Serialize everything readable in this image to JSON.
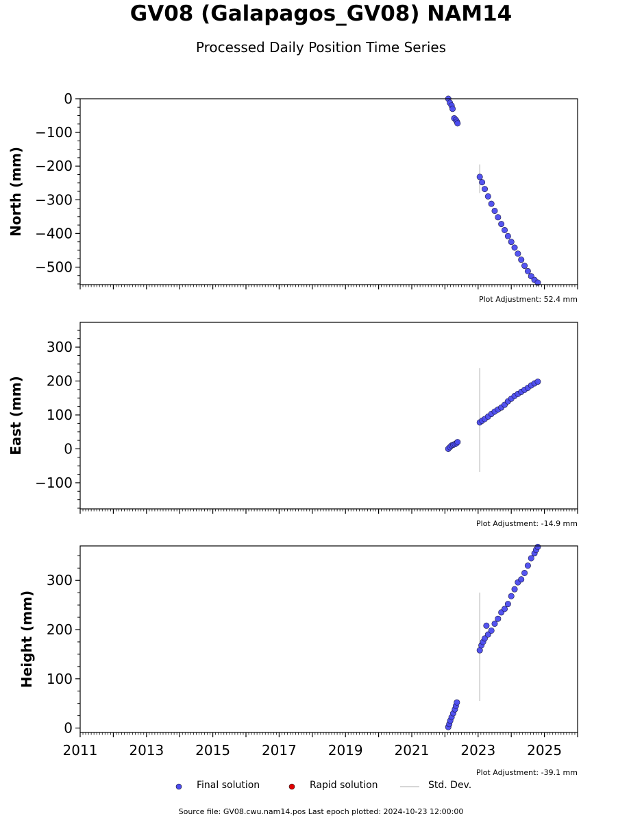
{
  "page": {
    "title": "GV08 (Galapagos_GV08) NAM14",
    "subtitle": "Processed Daily Position Time Series"
  },
  "legend": {
    "final_label": "Final solution",
    "rapid_label": "Rapid solution",
    "std_label": "Std. Dev.",
    "final_color": "#4b4bef",
    "rapid_color": "#e00000",
    "std_color": "#c8c8c8"
  },
  "footer": {
    "source_text": "Source file: GV08.cwu.nam14.pos  Last epoch plotted: 2024-10-23 12:00:00"
  },
  "chart_data": [
    {
      "type": "scatter",
      "component": "north",
      "ylabel": "North (mm)",
      "xlim": [
        2011.0,
        2026.0
      ],
      "ylim": [
        -552,
        0
      ],
      "yticks": [
        0,
        -100,
        -200,
        -300,
        -400,
        -500
      ],
      "adjustment_label": "Plot Adjustment: 52.4 mm",
      "std_dev_bar": {
        "x": 2023.05,
        "y_low": -280,
        "y_high": -195
      },
      "series": [
        {
          "name": "Final solution",
          "x": [
            2022.1,
            2022.15,
            2022.2,
            2022.23,
            2022.28,
            2022.33,
            2022.36,
            2022.38,
            2023.05,
            2023.12,
            2023.2,
            2023.3,
            2023.4,
            2023.5,
            2023.6,
            2023.7,
            2023.8,
            2023.9,
            2024.0,
            2024.1,
            2024.2,
            2024.3,
            2024.4,
            2024.5,
            2024.6,
            2024.7,
            2024.8
          ],
          "y": [
            0,
            -12,
            -20,
            -30,
            -58,
            -63,
            -68,
            -73,
            -232,
            -248,
            -268,
            -290,
            -312,
            -333,
            -352,
            -372,
            -390,
            -408,
            -425,
            -442,
            -460,
            -478,
            -496,
            -512,
            -527,
            -538,
            -546
          ]
        },
        {
          "name": "Rapid solution",
          "x": [],
          "y": []
        }
      ]
    },
    {
      "type": "scatter",
      "component": "east",
      "ylabel": "East (mm)",
      "xlim": [
        2011.0,
        2026.0
      ],
      "ylim": [
        -177,
        373
      ],
      "yticks": [
        300,
        200,
        100,
        0,
        -100
      ],
      "adjustment_label": "Plot Adjustment: -14.9 mm",
      "std_dev_bar": {
        "x": 2023.05,
        "y_low": -68,
        "y_high": 238
      },
      "series": [
        {
          "name": "Final solution",
          "x": [
            2022.1,
            2022.15,
            2022.2,
            2022.25,
            2022.3,
            2022.35,
            2022.38,
            2023.05,
            2023.12,
            2023.2,
            2023.3,
            2023.4,
            2023.5,
            2023.6,
            2023.7,
            2023.8,
            2023.9,
            2024.0,
            2024.1,
            2024.2,
            2024.3,
            2024.4,
            2024.5,
            2024.6,
            2024.7,
            2024.8
          ],
          "y": [
            0,
            5,
            10,
            12,
            14,
            17,
            20,
            78,
            83,
            88,
            95,
            103,
            110,
            116,
            122,
            130,
            140,
            148,
            156,
            162,
            168,
            174,
            180,
            187,
            193,
            198
          ]
        },
        {
          "name": "Rapid solution",
          "x": [],
          "y": []
        }
      ]
    },
    {
      "type": "scatter",
      "component": "height",
      "ylabel": "Height (mm)",
      "xlim": [
        2011.0,
        2026.0
      ],
      "ylim": [
        -9,
        370
      ],
      "yticks": [
        300,
        200,
        100,
        0
      ],
      "xticks": [
        2011,
        2013,
        2015,
        2017,
        2019,
        2021,
        2023,
        2025
      ],
      "xticklabels": [
        "2011",
        "2013",
        "2015",
        "2017",
        "2019",
        "2021",
        "2023",
        "2025"
      ],
      "adjustment_label": "Plot Adjustment: -39.1 mm",
      "std_dev_bar": {
        "x": 2023.05,
        "y_low": 55,
        "y_high": 275
      },
      "series": [
        {
          "name": "Final solution",
          "x": [
            2022.1,
            2022.13,
            2022.16,
            2022.2,
            2022.25,
            2022.3,
            2022.33,
            2022.36,
            2023.05,
            2023.1,
            2023.15,
            2023.2,
            2023.25,
            2023.3,
            2023.4,
            2023.5,
            2023.6,
            2023.7,
            2023.8,
            2023.9,
            2024.0,
            2024.1,
            2024.2,
            2024.3,
            2024.4,
            2024.5,
            2024.6,
            2024.7,
            2024.75,
            2024.8
          ],
          "y": [
            2,
            8,
            15,
            22,
            30,
            38,
            45,
            52,
            158,
            168,
            175,
            182,
            208,
            190,
            198,
            212,
            222,
            235,
            242,
            252,
            268,
            282,
            296,
            302,
            315,
            330,
            345,
            355,
            362,
            368
          ]
        },
        {
          "name": "Rapid solution",
          "x": [],
          "y": []
        }
      ]
    }
  ]
}
